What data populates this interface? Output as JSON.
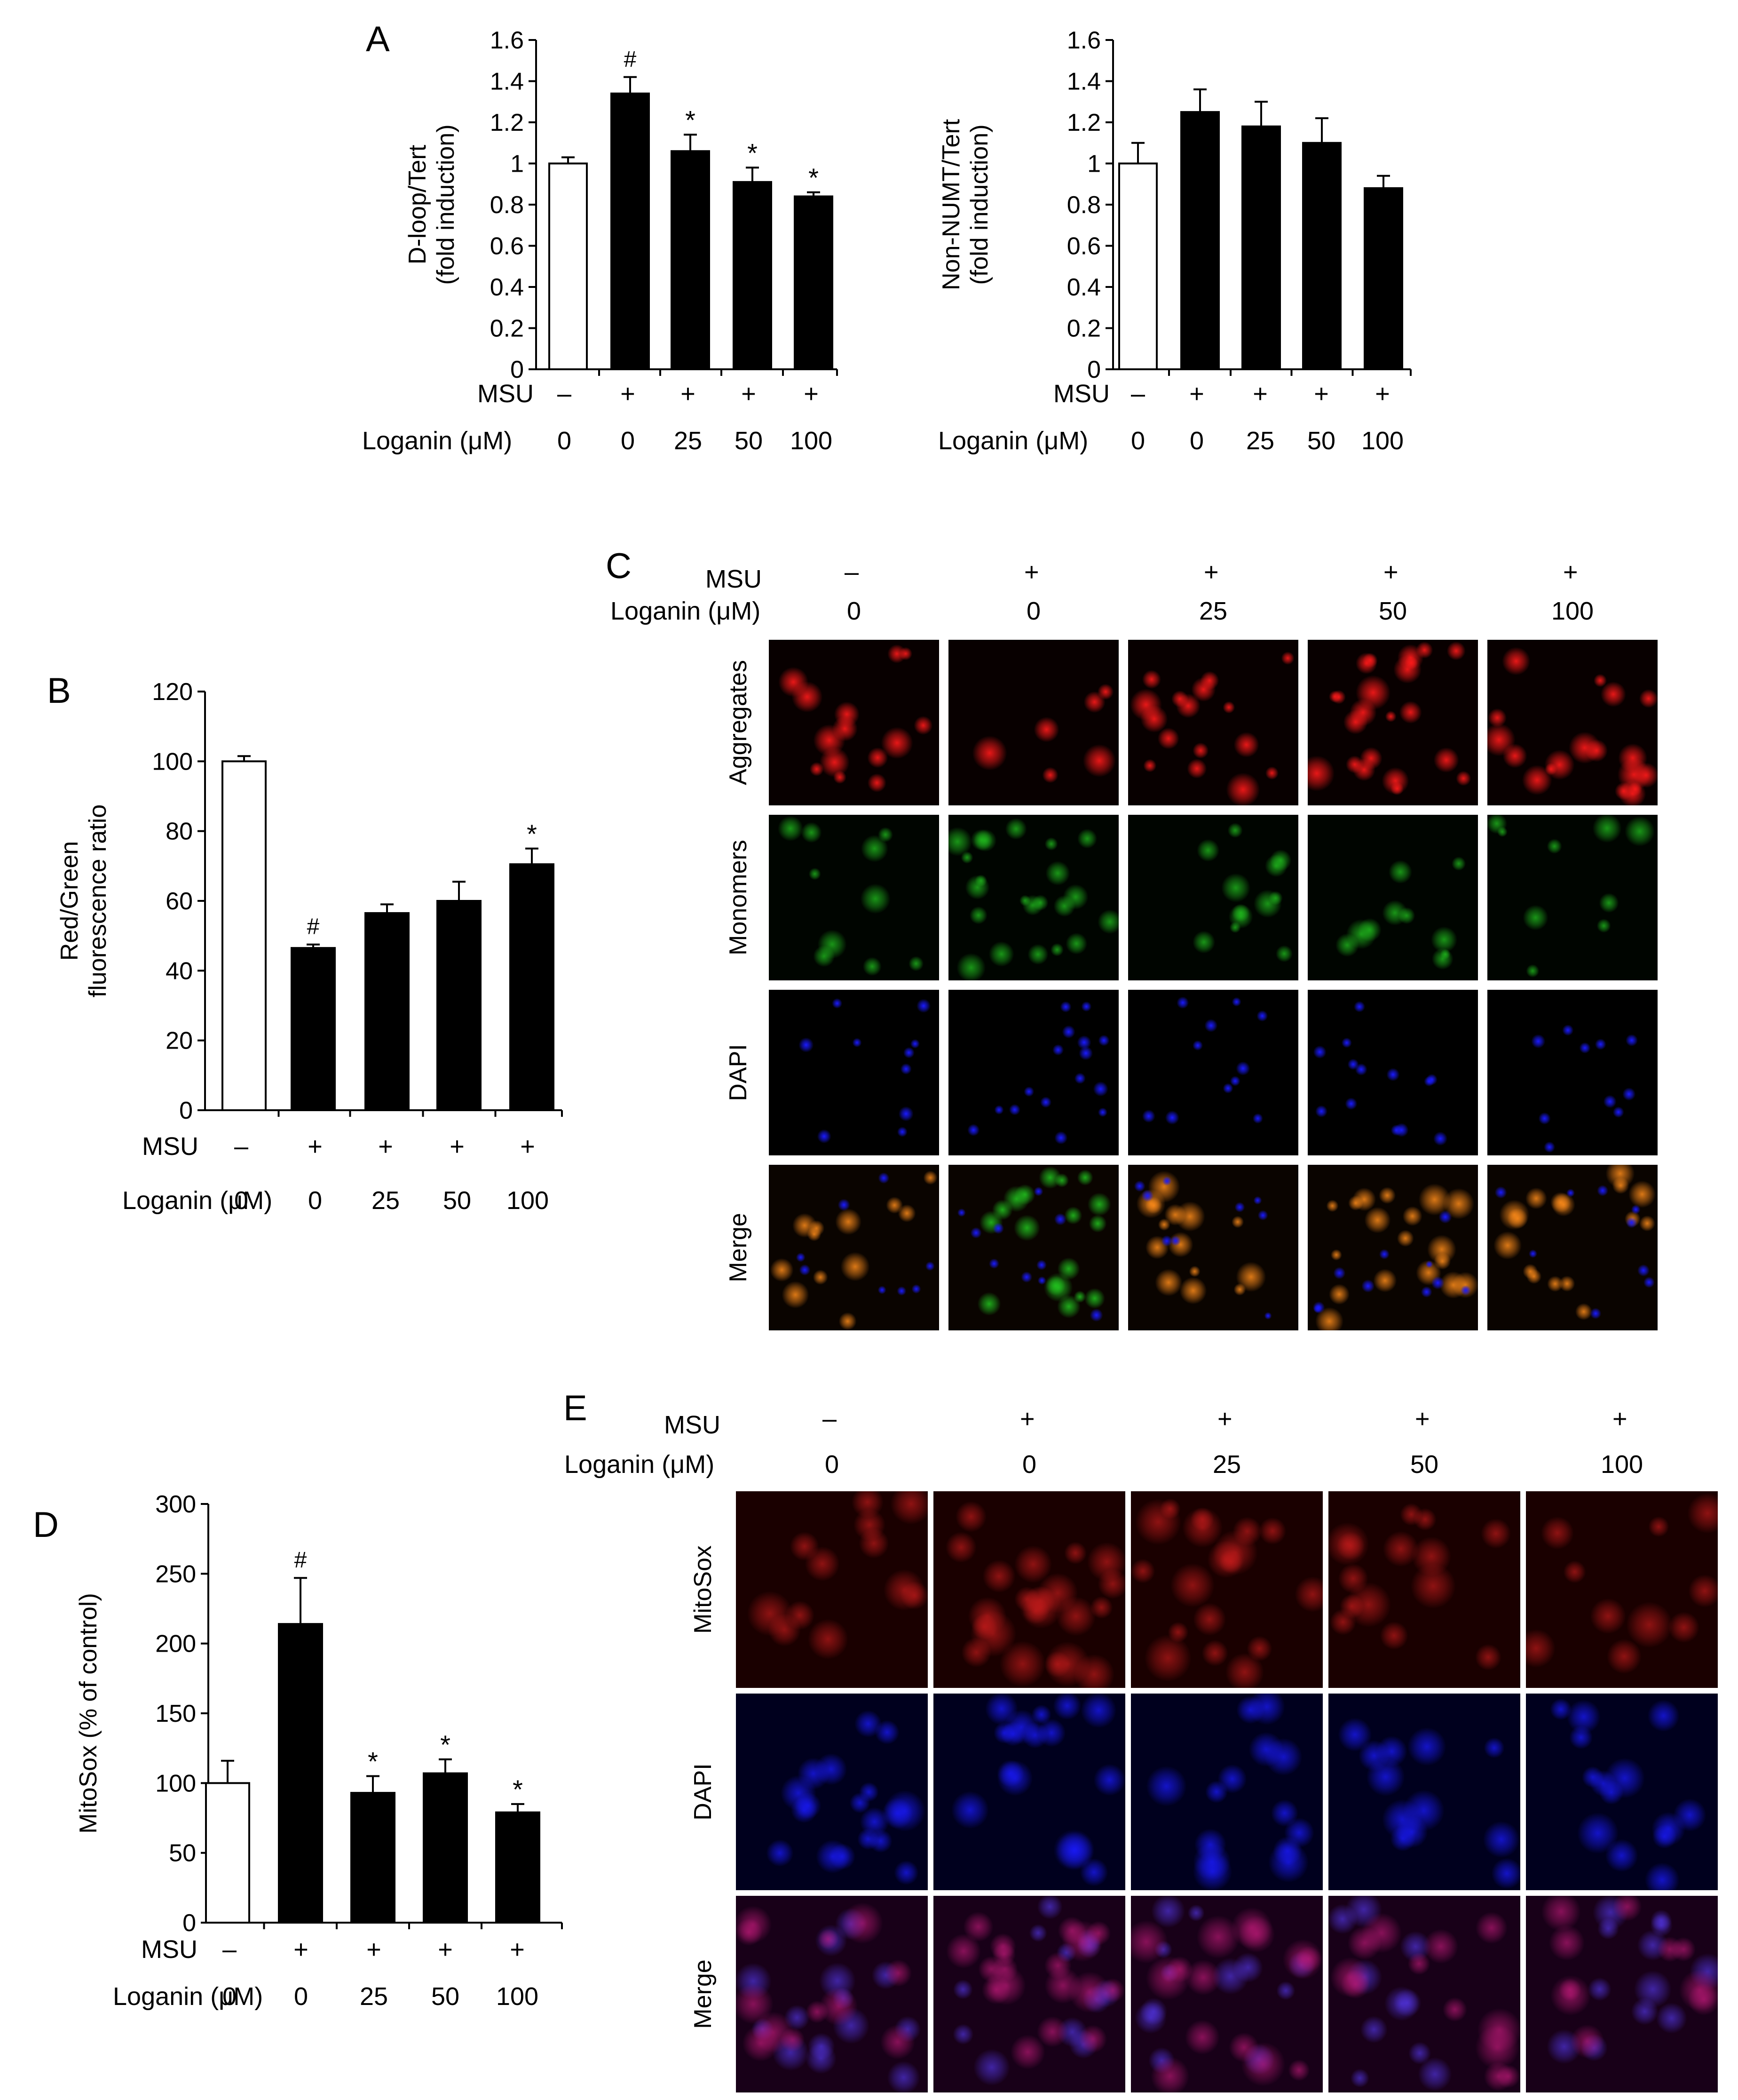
{
  "panels": {
    "A": "A",
    "B": "B",
    "C": "C",
    "D": "D",
    "E": "E"
  },
  "chart_data": [
    {
      "id": "A1",
      "type": "bar",
      "ylabel": "D-loop/Tert\n(fold induction)",
      "ylim": [
        0,
        1.6
      ],
      "yticks": [
        "0",
        "0.2",
        "0.4",
        "0.6",
        "0.8",
        "1",
        "1.2",
        "1.4",
        "1.6"
      ],
      "row_labels": [
        "MSU",
        "Loganin (μM)"
      ],
      "msu": [
        "–",
        "+",
        "+",
        "+",
        "+"
      ],
      "loganin": [
        "0",
        "0",
        "25",
        "50",
        "100"
      ],
      "values": [
        1.0,
        1.34,
        1.06,
        0.91,
        0.84
      ],
      "errors": [
        0.03,
        0.08,
        0.08,
        0.07,
        0.02
      ],
      "fills": [
        "#ffffff",
        "#000000",
        "#000000",
        "#000000",
        "#000000"
      ],
      "annotations": [
        "",
        "#",
        "*",
        "*",
        "*"
      ]
    },
    {
      "id": "A2",
      "type": "bar",
      "ylabel": "Non-NUMT/Tert\n(fold induction)",
      "ylim": [
        0,
        1.6
      ],
      "yticks": [
        "0",
        "0.2",
        "0.4",
        "0.6",
        "0.8",
        "1",
        "1.2",
        "1.4",
        "1.6"
      ],
      "row_labels": [
        "MSU",
        "Loganin (μM)"
      ],
      "msu": [
        "–",
        "+",
        "+",
        "+",
        "+"
      ],
      "loganin": [
        "0",
        "0",
        "25",
        "50",
        "100"
      ],
      "values": [
        1.0,
        1.25,
        1.18,
        1.1,
        0.88
      ],
      "errors": [
        0.1,
        0.11,
        0.12,
        0.12,
        0.06
      ],
      "fills": [
        "#ffffff",
        "#000000",
        "#000000",
        "#000000",
        "#000000"
      ],
      "annotations": [
        "",
        "",
        "",
        "",
        ""
      ]
    },
    {
      "id": "B",
      "type": "bar",
      "ylabel": "Red/Green\nfluorescence ratio",
      "ylim": [
        0,
        120
      ],
      "yticks": [
        "0",
        "20",
        "40",
        "60",
        "80",
        "100",
        "120"
      ],
      "row_labels": [
        "MSU",
        "Loganin (μM)"
      ],
      "msu": [
        "–",
        "+",
        "+",
        "+",
        "+"
      ],
      "loganin": [
        "0",
        "0",
        "25",
        "50",
        "100"
      ],
      "values": [
        100,
        46.5,
        56.5,
        60.0,
        70.5
      ],
      "errors": [
        1.5,
        1.0,
        2.5,
        5.5,
        4.5
      ],
      "fills": [
        "#ffffff",
        "#000000",
        "#000000",
        "#000000",
        "#000000"
      ],
      "annotations": [
        "",
        "#",
        "",
        "",
        "*"
      ]
    },
    {
      "id": "D",
      "type": "bar",
      "ylabel": "MitoSox (% of control)",
      "ylim": [
        0,
        300
      ],
      "yticks": [
        "0",
        "50",
        "100",
        "150",
        "200",
        "250",
        "300"
      ],
      "row_labels": [
        "MSU",
        "Loganin (μM)"
      ],
      "msu": [
        "–",
        "+",
        "+",
        "+",
        "+"
      ],
      "loganin": [
        "0",
        "0",
        "25",
        "50",
        "100"
      ],
      "values": [
        100,
        214,
        93,
        107,
        79
      ],
      "errors": [
        16,
        33,
        12,
        10,
        6
      ],
      "fills": [
        "#ffffff",
        "#000000",
        "#000000",
        "#000000",
        "#000000"
      ],
      "annotations": [
        "",
        "#",
        "*",
        "*",
        "*"
      ]
    }
  ],
  "panel_c": {
    "msu_label": "MSU",
    "loganin_label": "Loganin (μM)",
    "msu": [
      "–",
      "+",
      "+",
      "+",
      "+"
    ],
    "loganin": [
      "0",
      "0",
      "25",
      "50",
      "100"
    ],
    "rows": [
      "Aggregates",
      "Monomers",
      "DAPI",
      "Merge"
    ]
  },
  "panel_e": {
    "msu_label": "MSU",
    "loganin_label": "Loganin (μM)",
    "msu": [
      "–",
      "+",
      "+",
      "+",
      "+"
    ],
    "loganin": [
      "0",
      "0",
      "25",
      "50",
      "100"
    ],
    "rows": [
      "MitoSox",
      "DAPI",
      "Merge"
    ]
  },
  "colors": {
    "aggregates": "#ff1a1a",
    "monomers": "#22c51f",
    "dapi": "#1a1aff",
    "mitosox": "#cc1c1c"
  }
}
